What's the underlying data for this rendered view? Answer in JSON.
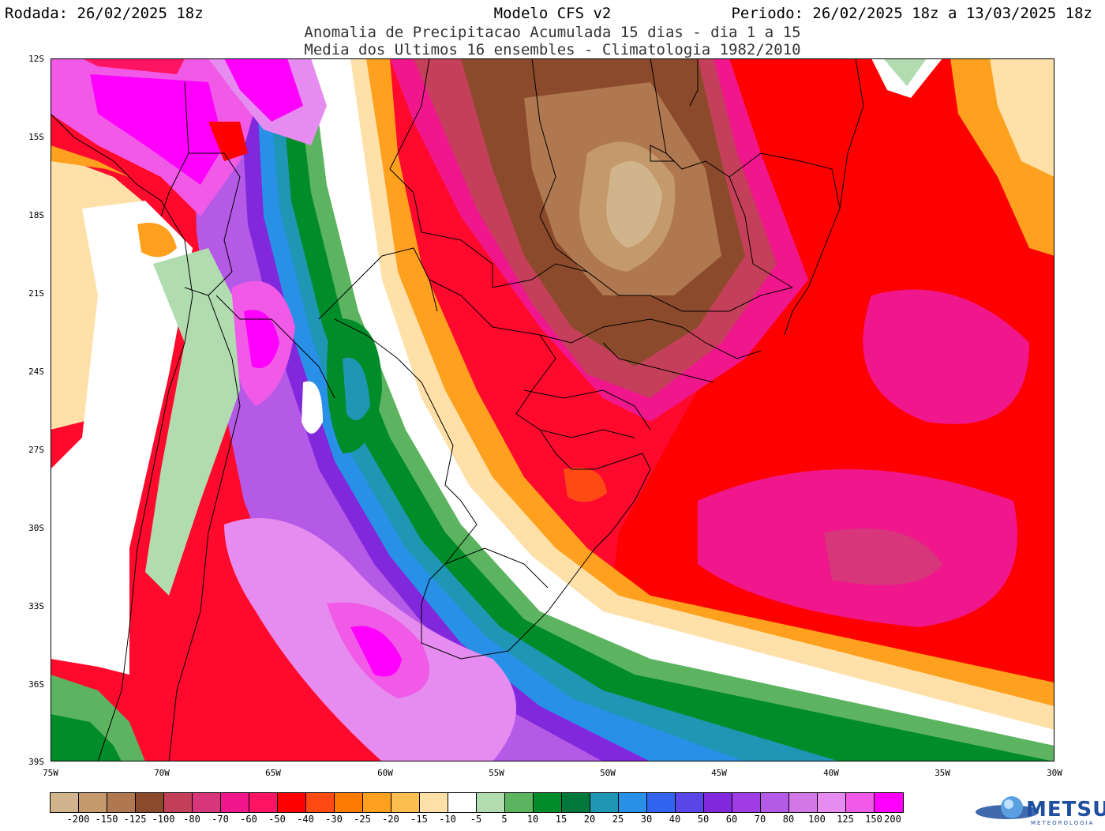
{
  "header": {
    "rodada": "Rodada: 26/02/2025 18z",
    "modelo": "Modelo CFS v2",
    "periodo": "Periodo: 26/02/2025 18z a 13/03/2025 18z",
    "subtitle1": "Anomalia de Precipitacao Acumulada 15 dias - dia 1 a 15",
    "subtitle2": "Media dos Ultimos 16 ensembles - Climatologia 1982/2010"
  },
  "map": {
    "lat_labels": [
      "12S",
      "15S",
      "18S",
      "21S",
      "24S",
      "27S",
      "30S",
      "33S",
      "36S",
      "39S"
    ],
    "lon_labels": [
      "75W",
      "70W",
      "65W",
      "60W",
      "55W",
      "50W",
      "45W",
      "40W",
      "35W",
      "30W"
    ]
  },
  "colorbar": {
    "labels": [
      "-200",
      "-150",
      "-125",
      "-100",
      "-80",
      "-70",
      "-60",
      "-50",
      "-40",
      "-30",
      "-25",
      "-20",
      "-15",
      "-10",
      "-5",
      "5",
      "10",
      "15",
      "20",
      "25",
      "30",
      "40",
      "50",
      "60",
      "70",
      "80",
      "100",
      "125",
      "150",
      "200"
    ],
    "colors": [
      "#d2b48c",
      "#c49a6c",
      "#b07850",
      "#8b4a2b",
      "#c4405a",
      "#d8367a",
      "#f0168c",
      "#ff1464",
      "#ff0000",
      "#ff4a14",
      "#ff7a00",
      "#ffa01e",
      "#ffbe50",
      "#ffe0a8",
      "#ffffff",
      "#b0dcb0",
      "#5cb460",
      "#008c28",
      "#00783c",
      "#1e96b4",
      "#2890e6",
      "#3264f0",
      "#5a46e6",
      "#8228dc",
      "#a03ce6",
      "#b45ae6",
      "#d278e6",
      "#e68cf0",
      "#f05ae6",
      "#ff00ff"
    ]
  },
  "logo": {
    "name": "METSUL",
    "tagline": "METEOROLOGIA"
  }
}
